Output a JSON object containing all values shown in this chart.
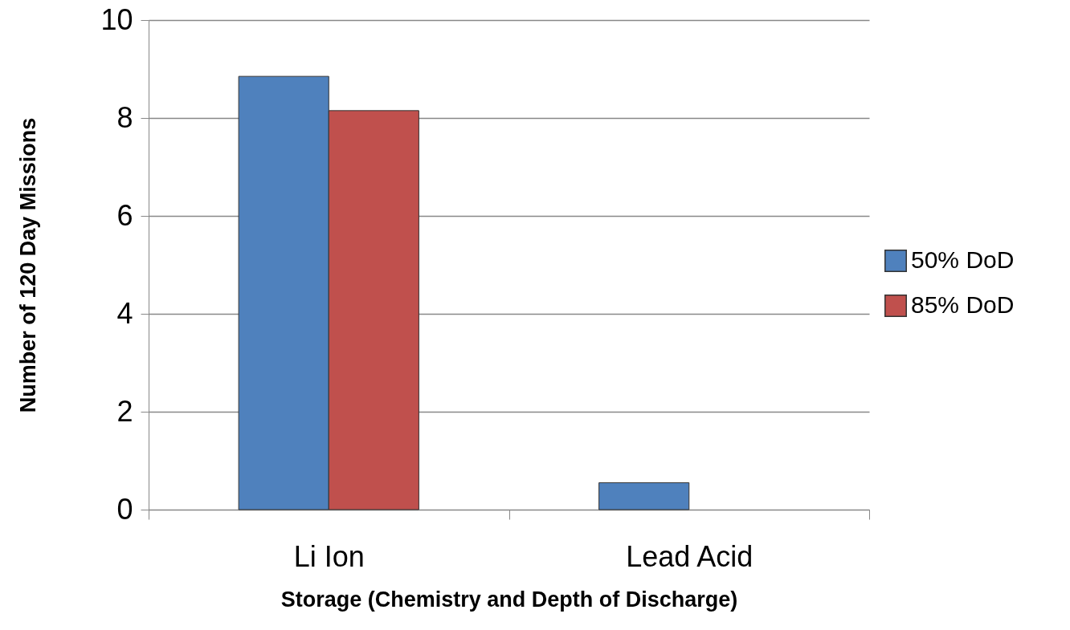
{
  "chart_data": {
    "type": "bar",
    "xlabel": "Storage (Chemistry and Depth of Discharge)",
    "ylabel": "Number of 120 Day Missions",
    "categories": [
      "Li Ion",
      "Lead Acid"
    ],
    "series": [
      {
        "name": "50% DoD",
        "color": "#4f81bd",
        "values": [
          8.85,
          0.55
        ]
      },
      {
        "name": "85% DoD",
        "color": "#c0504d",
        "values": [
          8.15,
          null
        ]
      }
    ],
    "ylim": [
      0,
      10
    ],
    "yticks": [
      0,
      2,
      4,
      6,
      8,
      10
    ],
    "grid": "y",
    "legend": "right"
  }
}
